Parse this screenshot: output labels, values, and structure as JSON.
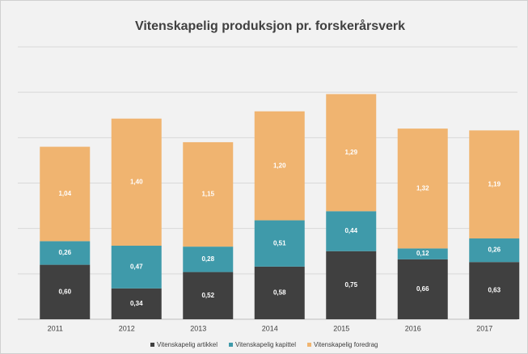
{
  "chart_data": {
    "type": "stacked_bar",
    "title": "Vitenskapelig produksjon pr. forskerårsverk",
    "categories": [
      "2011",
      "2012",
      "2013",
      "2014",
      "2015",
      "2016",
      "2017"
    ],
    "series": [
      {
        "name": "Vitenskapelig artikkel",
        "color": "#404040",
        "values": [
          0.6,
          0.34,
          0.52,
          0.58,
          0.75,
          0.66,
          0.63
        ],
        "value_labels": [
          "0,60",
          "0,34",
          "0,52",
          "0,58",
          "0,75",
          "0,66",
          "0,63"
        ]
      },
      {
        "name": "Vitenskapelig kapittel",
        "color": "#3f9aaa",
        "values": [
          0.26,
          0.47,
          0.28,
          0.51,
          0.44,
          0.12,
          0.26
        ],
        "value_labels": [
          "0,26",
          "0,47",
          "0,28",
          "0,51",
          "0,44",
          "0,12",
          "0,26"
        ]
      },
      {
        "name": "Vitenskapelig foredrag",
        "color": "#f0b470",
        "values": [
          1.04,
          1.4,
          1.15,
          1.2,
          1.29,
          1.32,
          1.19
        ],
        "value_labels": [
          "1,04",
          "1,40",
          "1,15",
          "1,20",
          "1,29",
          "1,32",
          "1,19"
        ]
      }
    ],
    "ylim": [
      0,
      3
    ],
    "yticks": [
      0,
      0.5,
      1,
      1.5,
      2,
      2.5,
      3
    ],
    "grid": true,
    "legend": "bottom"
  }
}
